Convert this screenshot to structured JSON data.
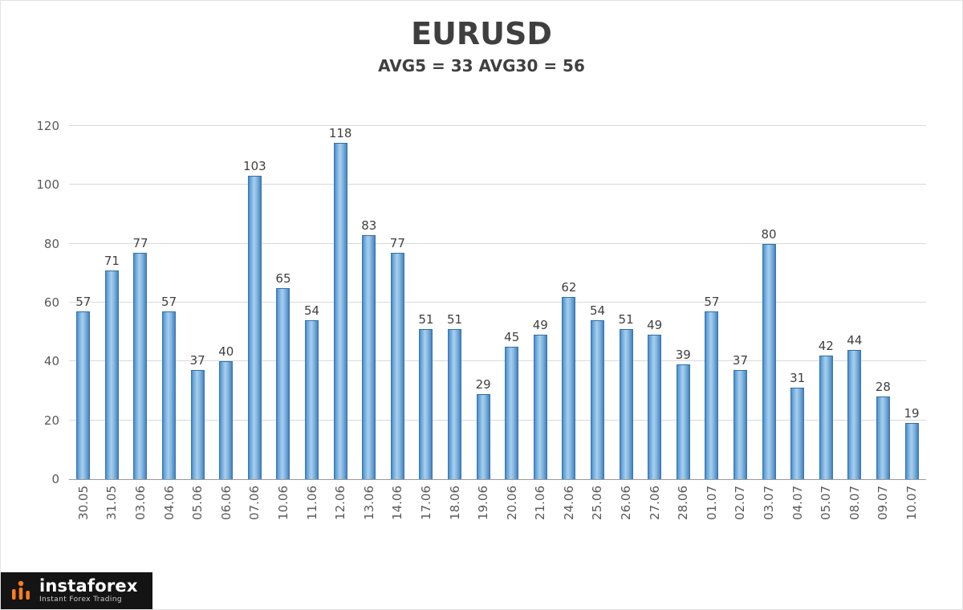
{
  "chart_data": {
    "type": "bar",
    "title": "EURUSD",
    "subtitle": "AVG5 = 33 AVG30 = 56",
    "categories": [
      "30.05",
      "31.05",
      "03.06",
      "04.06",
      "05.06",
      "06.06",
      "07.06",
      "10.06",
      "11.06",
      "12.06",
      "13.06",
      "14.06",
      "17.06",
      "18.06",
      "19.06",
      "20.06",
      "21.06",
      "24.06",
      "25.06",
      "26.06",
      "27.06",
      "28.06",
      "01.07",
      "02.07",
      "03.07",
      "04.07",
      "05.07",
      "08.07",
      "09.07",
      "10.07"
    ],
    "values": [
      57,
      71,
      77,
      57,
      37,
      40,
      103,
      65,
      54,
      118,
      83,
      77,
      51,
      51,
      29,
      45,
      49,
      62,
      54,
      51,
      49,
      39,
      57,
      37,
      80,
      31,
      42,
      44,
      28,
      19
    ],
    "ylim": [
      0,
      120
    ],
    "yticks": [
      0,
      20,
      40,
      60,
      80,
      100,
      120
    ],
    "xlabel": "",
    "ylabel": "",
    "grid": "horizontal",
    "legend": "none",
    "bar_color_center": "#a9cfec",
    "bar_color_edge": "#2f6fae"
  },
  "branding": {
    "logo_text": "instaforex",
    "tagline": "Instant Forex Trading",
    "icon_color": "#ff7d1f",
    "background": "#141414"
  }
}
